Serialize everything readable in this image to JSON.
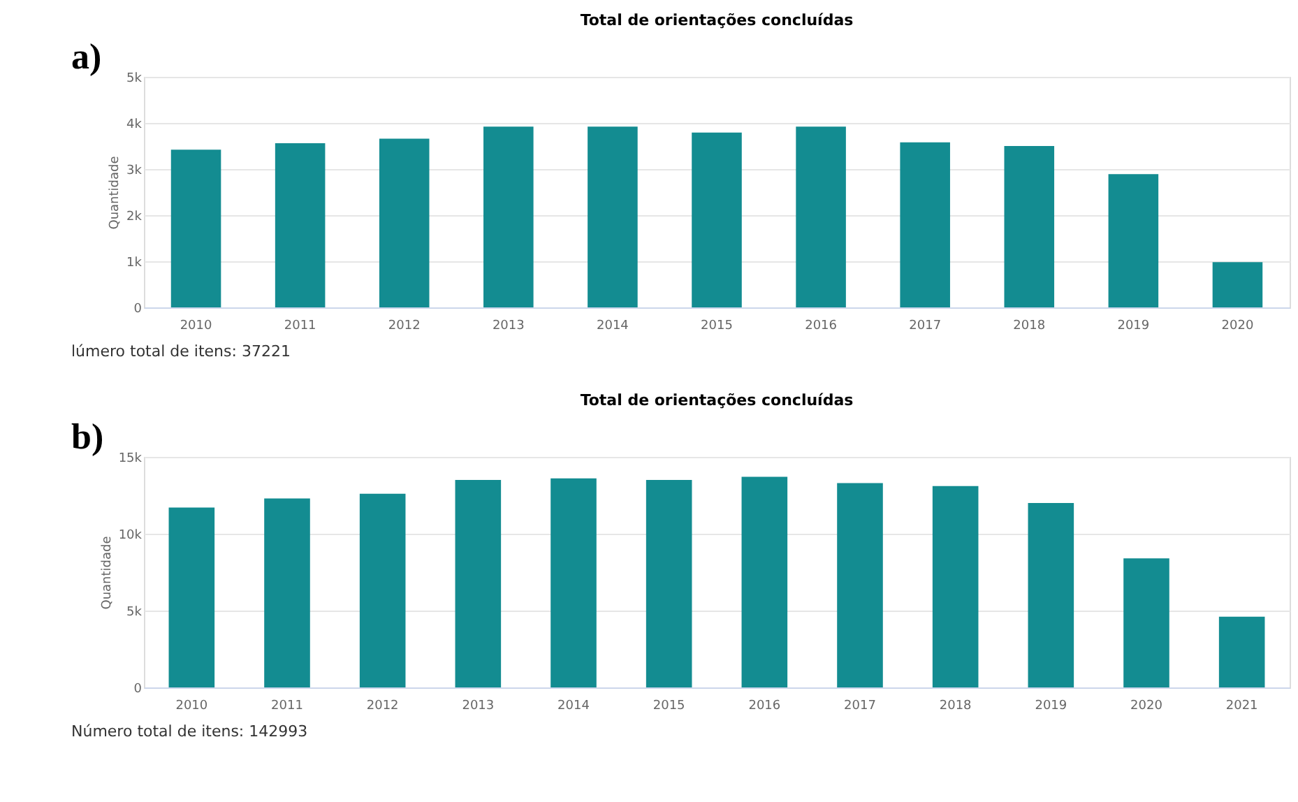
{
  "chart_data": [
    {
      "type": "bar",
      "title": "Total de orientações concluídas",
      "ylabel": "Quantidade",
      "annotations": [
        "a)",
        "lúmero total de itens: 37221"
      ],
      "categories": [
        "2010",
        "2011",
        "2012",
        "2013",
        "2014",
        "2015",
        "2016",
        "2017",
        "2018",
        "2019",
        "2020"
      ],
      "values": [
        3420,
        3560,
        3660,
        3920,
        3920,
        3790,
        3920,
        3580,
        3500,
        2890,
        980
      ],
      "color": "#138c91",
      "ylim": [
        0,
        5000
      ],
      "yticks": [
        0,
        {
          "value": 1000,
          "label": "1k"
        },
        {
          "value": 2000,
          "label": "2k"
        },
        {
          "value": 3000,
          "label": "3k"
        },
        {
          "value": 4000,
          "label": "4k"
        },
        {
          "value": 5000,
          "label": "5k"
        }
      ],
      "grid": "y"
    },
    {
      "type": "bar",
      "title": "Total de orientações concluídas",
      "ylabel": "Quantidade",
      "annotations": [
        "b)",
        "Número total de itens: 142993"
      ],
      "categories": [
        "2010",
        "2011",
        "2012",
        "2013",
        "2014",
        "2015",
        "2016",
        "2017",
        "2018",
        "2019",
        "2020",
        "2021"
      ],
      "values": [
        11700,
        12300,
        12600,
        13500,
        13600,
        13500,
        13700,
        13300,
        13100,
        12000,
        8400,
        4600
      ],
      "color": "#138c91",
      "ylim": [
        0,
        15000
      ],
      "yticks": [
        0,
        {
          "value": 5000,
          "label": "5k"
        },
        {
          "value": 10000,
          "label": "10k"
        },
        {
          "value": 15000,
          "label": "15k"
        }
      ],
      "grid": "y"
    }
  ]
}
